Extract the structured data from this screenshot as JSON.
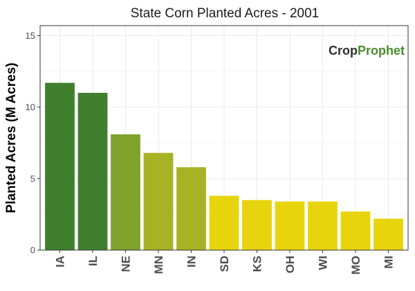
{
  "chart_data": {
    "type": "bar",
    "title": "State Corn Planted Acres - 2001",
    "xlabel": "",
    "ylabel": "Planted Acres (M Acres)",
    "categories": [
      "IA",
      "IL",
      "NE",
      "MN",
      "IN",
      "SD",
      "KS",
      "OH",
      "WI",
      "MO",
      "MI"
    ],
    "values": [
      11.7,
      11.0,
      8.1,
      6.8,
      5.8,
      3.8,
      3.5,
      3.4,
      3.4,
      2.7,
      2.2
    ],
    "bar_colors": [
      "#3f7f2e",
      "#3f7f2e",
      "#7ea22a",
      "#a7b324",
      "#a7b324",
      "#e8d40c",
      "#e8d40c",
      "#e8d40c",
      "#e8d40c",
      "#e8d40c",
      "#e8d40c"
    ],
    "ylim": [
      0,
      15.7
    ],
    "yticks": [
      0,
      5,
      10,
      15
    ],
    "grid": true,
    "legend": "none"
  },
  "watermark": {
    "crop": "Crop",
    "prophet": "Prophet"
  },
  "colors": {
    "panel_background": "#ffffff",
    "grid_major": "#ebebeb",
    "grid_minor": "#f5f5f5",
    "panel_border": "#333333",
    "logo_green": "#4a8a2c"
  }
}
